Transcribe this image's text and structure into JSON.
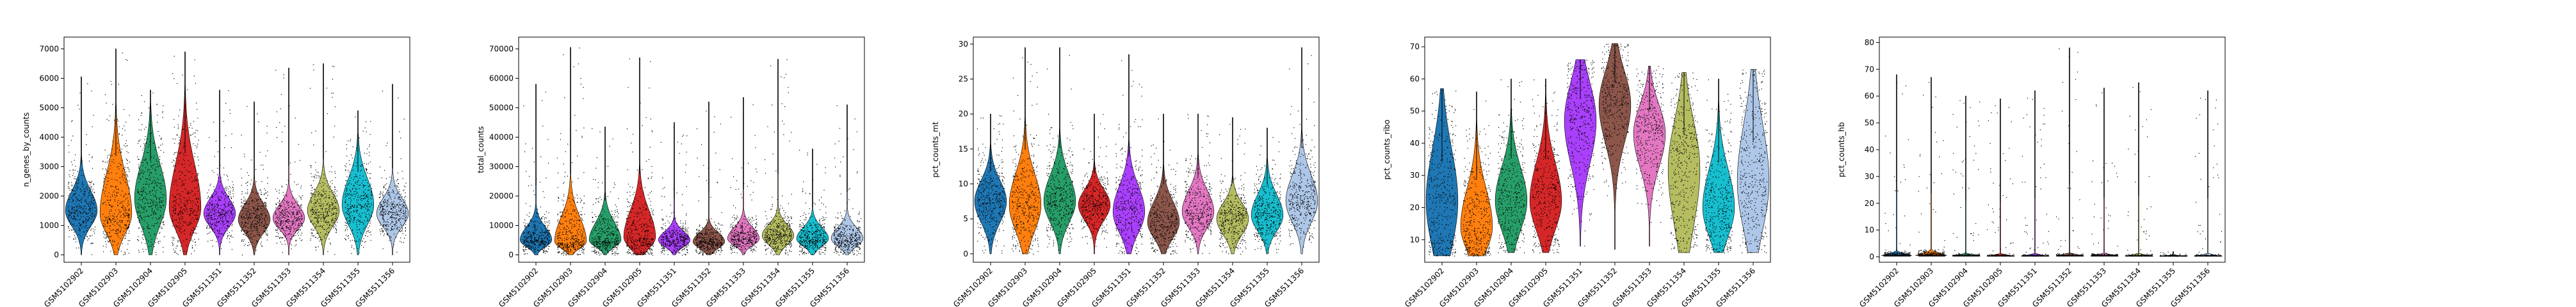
{
  "chart_data": [
    {
      "type": "violin",
      "ylabel": "n_genes_by_counts",
      "xlabel": "",
      "categories": [
        "GSM5102902",
        "GSM5102903",
        "GSM5102904",
        "GSM5102905",
        "GSM5511351",
        "GSM5511352",
        "GSM5511353",
        "GSM5511354",
        "GSM5511355",
        "GSM5511356"
      ],
      "colors": [
        "#1f77b4",
        "#ff7f0e",
        "#279e68",
        "#d62728",
        "#aa40fc",
        "#8c564b",
        "#e377c2",
        "#b5bd61",
        "#17becf",
        "#aec7e8"
      ],
      "yticks": [
        0,
        1000,
        2000,
        3000,
        4000,
        5000,
        6000,
        7000
      ],
      "ylim": [
        -250,
        7400
      ],
      "violins": [
        {
          "max": 6050,
          "median": 1500,
          "q1": 1150,
          "q3": 1950
        },
        {
          "max": 7000,
          "median": 1400,
          "q1": 950,
          "q3": 2300
        },
        {
          "max": 5600,
          "median": 1900,
          "q1": 1300,
          "q3": 2700
        },
        {
          "max": 6900,
          "median": 1600,
          "q1": 1100,
          "q3": 2600
        },
        {
          "max": 5600,
          "median": 1400,
          "q1": 1100,
          "q3": 1750
        },
        {
          "max": 5200,
          "median": 1200,
          "q1": 900,
          "q3": 1550
        },
        {
          "max": 6350,
          "median": 1250,
          "q1": 1000,
          "q3": 1550
        },
        {
          "max": 6500,
          "median": 1500,
          "q1": 1150,
          "q3": 1900
        },
        {
          "max": 4900,
          "median": 1700,
          "q1": 1250,
          "q3": 2300
        },
        {
          "max": 5800,
          "median": 1400,
          "q1": 1100,
          "q3": 1750
        }
      ]
    },
    {
      "type": "violin",
      "ylabel": "total_counts",
      "xlabel": "",
      "categories": [
        "GSM5102902",
        "GSM5102903",
        "GSM5102904",
        "GSM5102905",
        "GSM5511351",
        "GSM5511352",
        "GSM5511353",
        "GSM5511354",
        "GSM5511355",
        "GSM5511356"
      ],
      "colors": [
        "#1f77b4",
        "#ff7f0e",
        "#279e68",
        "#d62728",
        "#aa40fc",
        "#8c564b",
        "#e377c2",
        "#b5bd61",
        "#17becf",
        "#aec7e8"
      ],
      "yticks": [
        0,
        10000,
        20000,
        30000,
        40000,
        50000,
        60000,
        70000
      ],
      "ylim": [
        -2500,
        74000
      ],
      "violins": [
        {
          "max": 58000,
          "median": 5000,
          "q1": 3500,
          "q3": 8000
        },
        {
          "max": 70500,
          "median": 4500,
          "q1": 3000,
          "q3": 10000
        },
        {
          "max": 43500,
          "median": 5000,
          "q1": 3500,
          "q3": 9000
        },
        {
          "max": 67000,
          "median": 6000,
          "q1": 3500,
          "q3": 12000
        },
        {
          "max": 45000,
          "median": 5000,
          "q1": 3500,
          "q3": 7000
        },
        {
          "max": 52000,
          "median": 4500,
          "q1": 3000,
          "q3": 6500
        },
        {
          "max": 53500,
          "median": 5500,
          "q1": 4000,
          "q3": 8000
        },
        {
          "max": 66500,
          "median": 6500,
          "q1": 4500,
          "q3": 9000
        },
        {
          "max": 36000,
          "median": 5500,
          "q1": 3800,
          "q3": 8000
        },
        {
          "max": 51000,
          "median": 5500,
          "q1": 3800,
          "q3": 8000
        }
      ]
    },
    {
      "type": "violin",
      "ylabel": "pct_counts_mt",
      "xlabel": "",
      "categories": [
        "GSM5102902",
        "GSM5102903",
        "GSM5102904",
        "GSM5102905",
        "GSM5511351",
        "GSM5511352",
        "GSM5511353",
        "GSM5511354",
        "GSM5511355",
        "GSM5511356"
      ],
      "colors": [
        "#1f77b4",
        "#ff7f0e",
        "#279e68",
        "#d62728",
        "#aa40fc",
        "#8c564b",
        "#e377c2",
        "#b5bd61",
        "#17becf",
        "#aec7e8"
      ],
      "yticks": [
        0,
        5,
        10,
        15,
        20,
        25,
        30
      ],
      "ylim": [
        -1.2,
        31
      ],
      "violins": [
        {
          "max": 20,
          "median": 7.5,
          "q1": 5.5,
          "q3": 9.5
        },
        {
          "max": 29.5,
          "median": 7,
          "q1": 4.5,
          "q3": 10
        },
        {
          "max": 29.5,
          "median": 7.5,
          "q1": 5.5,
          "q3": 10
        },
        {
          "max": 20,
          "median": 7,
          "q1": 5.5,
          "q3": 8.5
        },
        {
          "max": 28.5,
          "median": 6,
          "q1": 4,
          "q3": 8.5
        },
        {
          "max": 20,
          "median": 4.5,
          "q1": 3,
          "q3": 6.5
        },
        {
          "max": 20,
          "median": 6,
          "q1": 4.5,
          "q3": 8
        },
        {
          "max": 19.5,
          "median": 5,
          "q1": 3.5,
          "q3": 6.5
        },
        {
          "max": 18,
          "median": 5.5,
          "q1": 4,
          "q3": 7.5
        },
        {
          "max": 29.5,
          "median": 7.5,
          "q1": 5.5,
          "q3": 10
        }
      ]
    },
    {
      "type": "violin",
      "ylabel": "pct_counts_ribo",
      "xlabel": "",
      "categories": [
        "GSM5102902",
        "GSM5102903",
        "GSM5102904",
        "GSM5102905",
        "GSM5511351",
        "GSM5511352",
        "GSM5511353",
        "GSM5511354",
        "GSM5511355",
        "GSM5511356"
      ],
      "colors": [
        "#1f77b4",
        "#ff7f0e",
        "#279e68",
        "#d62728",
        "#aa40fc",
        "#8c564b",
        "#e377c2",
        "#b5bd61",
        "#17becf",
        "#aec7e8"
      ],
      "yticks": [
        10,
        20,
        30,
        40,
        50,
        60,
        70
      ],
      "ylim": [
        3,
        73
      ],
      "violins": [
        {
          "min": 5,
          "max": 57,
          "median": 22,
          "q1": 12,
          "q3": 33
        },
        {
          "min": 5,
          "max": 56,
          "median": 14,
          "q1": 9,
          "q3": 22
        },
        {
          "min": 6,
          "max": 60,
          "median": 22,
          "q1": 16,
          "q3": 29
        },
        {
          "min": 6,
          "max": 60,
          "median": 22,
          "q1": 16,
          "q3": 30
        },
        {
          "min": 8,
          "max": 66,
          "median": 47,
          "q1": 38,
          "q3": 55
        },
        {
          "min": 7,
          "max": 71,
          "median": 52,
          "q1": 44,
          "q3": 59
        },
        {
          "min": 8,
          "max": 64,
          "median": 43,
          "q1": 36,
          "q3": 49
        },
        {
          "min": 6,
          "max": 62,
          "median": 32,
          "q1": 20,
          "q3": 42
        },
        {
          "min": 6,
          "max": 60,
          "median": 20,
          "q1": 14,
          "q3": 28
        },
        {
          "min": 6,
          "max": 63,
          "median": 28,
          "q1": 18,
          "q3": 40
        }
      ]
    },
    {
      "type": "violin",
      "ylabel": "pct_counts_hb",
      "xlabel": "",
      "categories": [
        "GSM5102902",
        "GSM5102903",
        "GSM5102904",
        "GSM5102905",
        "GSM5511351",
        "GSM5511352",
        "GSM5511353",
        "GSM5511354",
        "GSM5511355",
        "GSM5511356"
      ],
      "colors": [
        "#1f77b4",
        "#ff7f0e",
        "#279e68",
        "#d62728",
        "#aa40fc",
        "#8c564b",
        "#e377c2",
        "#b5bd61",
        "#17becf",
        "#aec7e8"
      ],
      "yticks": [
        0,
        10,
        20,
        30,
        40,
        50,
        60,
        70,
        80
      ],
      "ylim": [
        -2,
        82
      ],
      "violins": [
        {
          "max": 68,
          "median": 0.3,
          "q1": 0.1,
          "q3": 0.8
        },
        {
          "max": 67,
          "median": 0.4,
          "q1": 0.1,
          "q3": 1.0
        },
        {
          "max": 60,
          "median": 0.2,
          "q1": 0.05,
          "q3": 0.5
        },
        {
          "max": 59,
          "median": 0.15,
          "q1": 0.05,
          "q3": 0.4
        },
        {
          "max": 62,
          "median": 0.15,
          "q1": 0.05,
          "q3": 0.4
        },
        {
          "max": 78,
          "median": 0.2,
          "q1": 0.05,
          "q3": 0.5
        },
        {
          "max": 63,
          "median": 0.2,
          "q1": 0.05,
          "q3": 0.5
        },
        {
          "max": 65,
          "median": 0.15,
          "q1": 0.05,
          "q3": 0.4
        },
        {
          "max": 2,
          "median": 0.1,
          "q1": 0.02,
          "q3": 0.3
        },
        {
          "max": 62,
          "median": 0.15,
          "q1": 0.05,
          "q3": 0.4
        }
      ]
    }
  ]
}
